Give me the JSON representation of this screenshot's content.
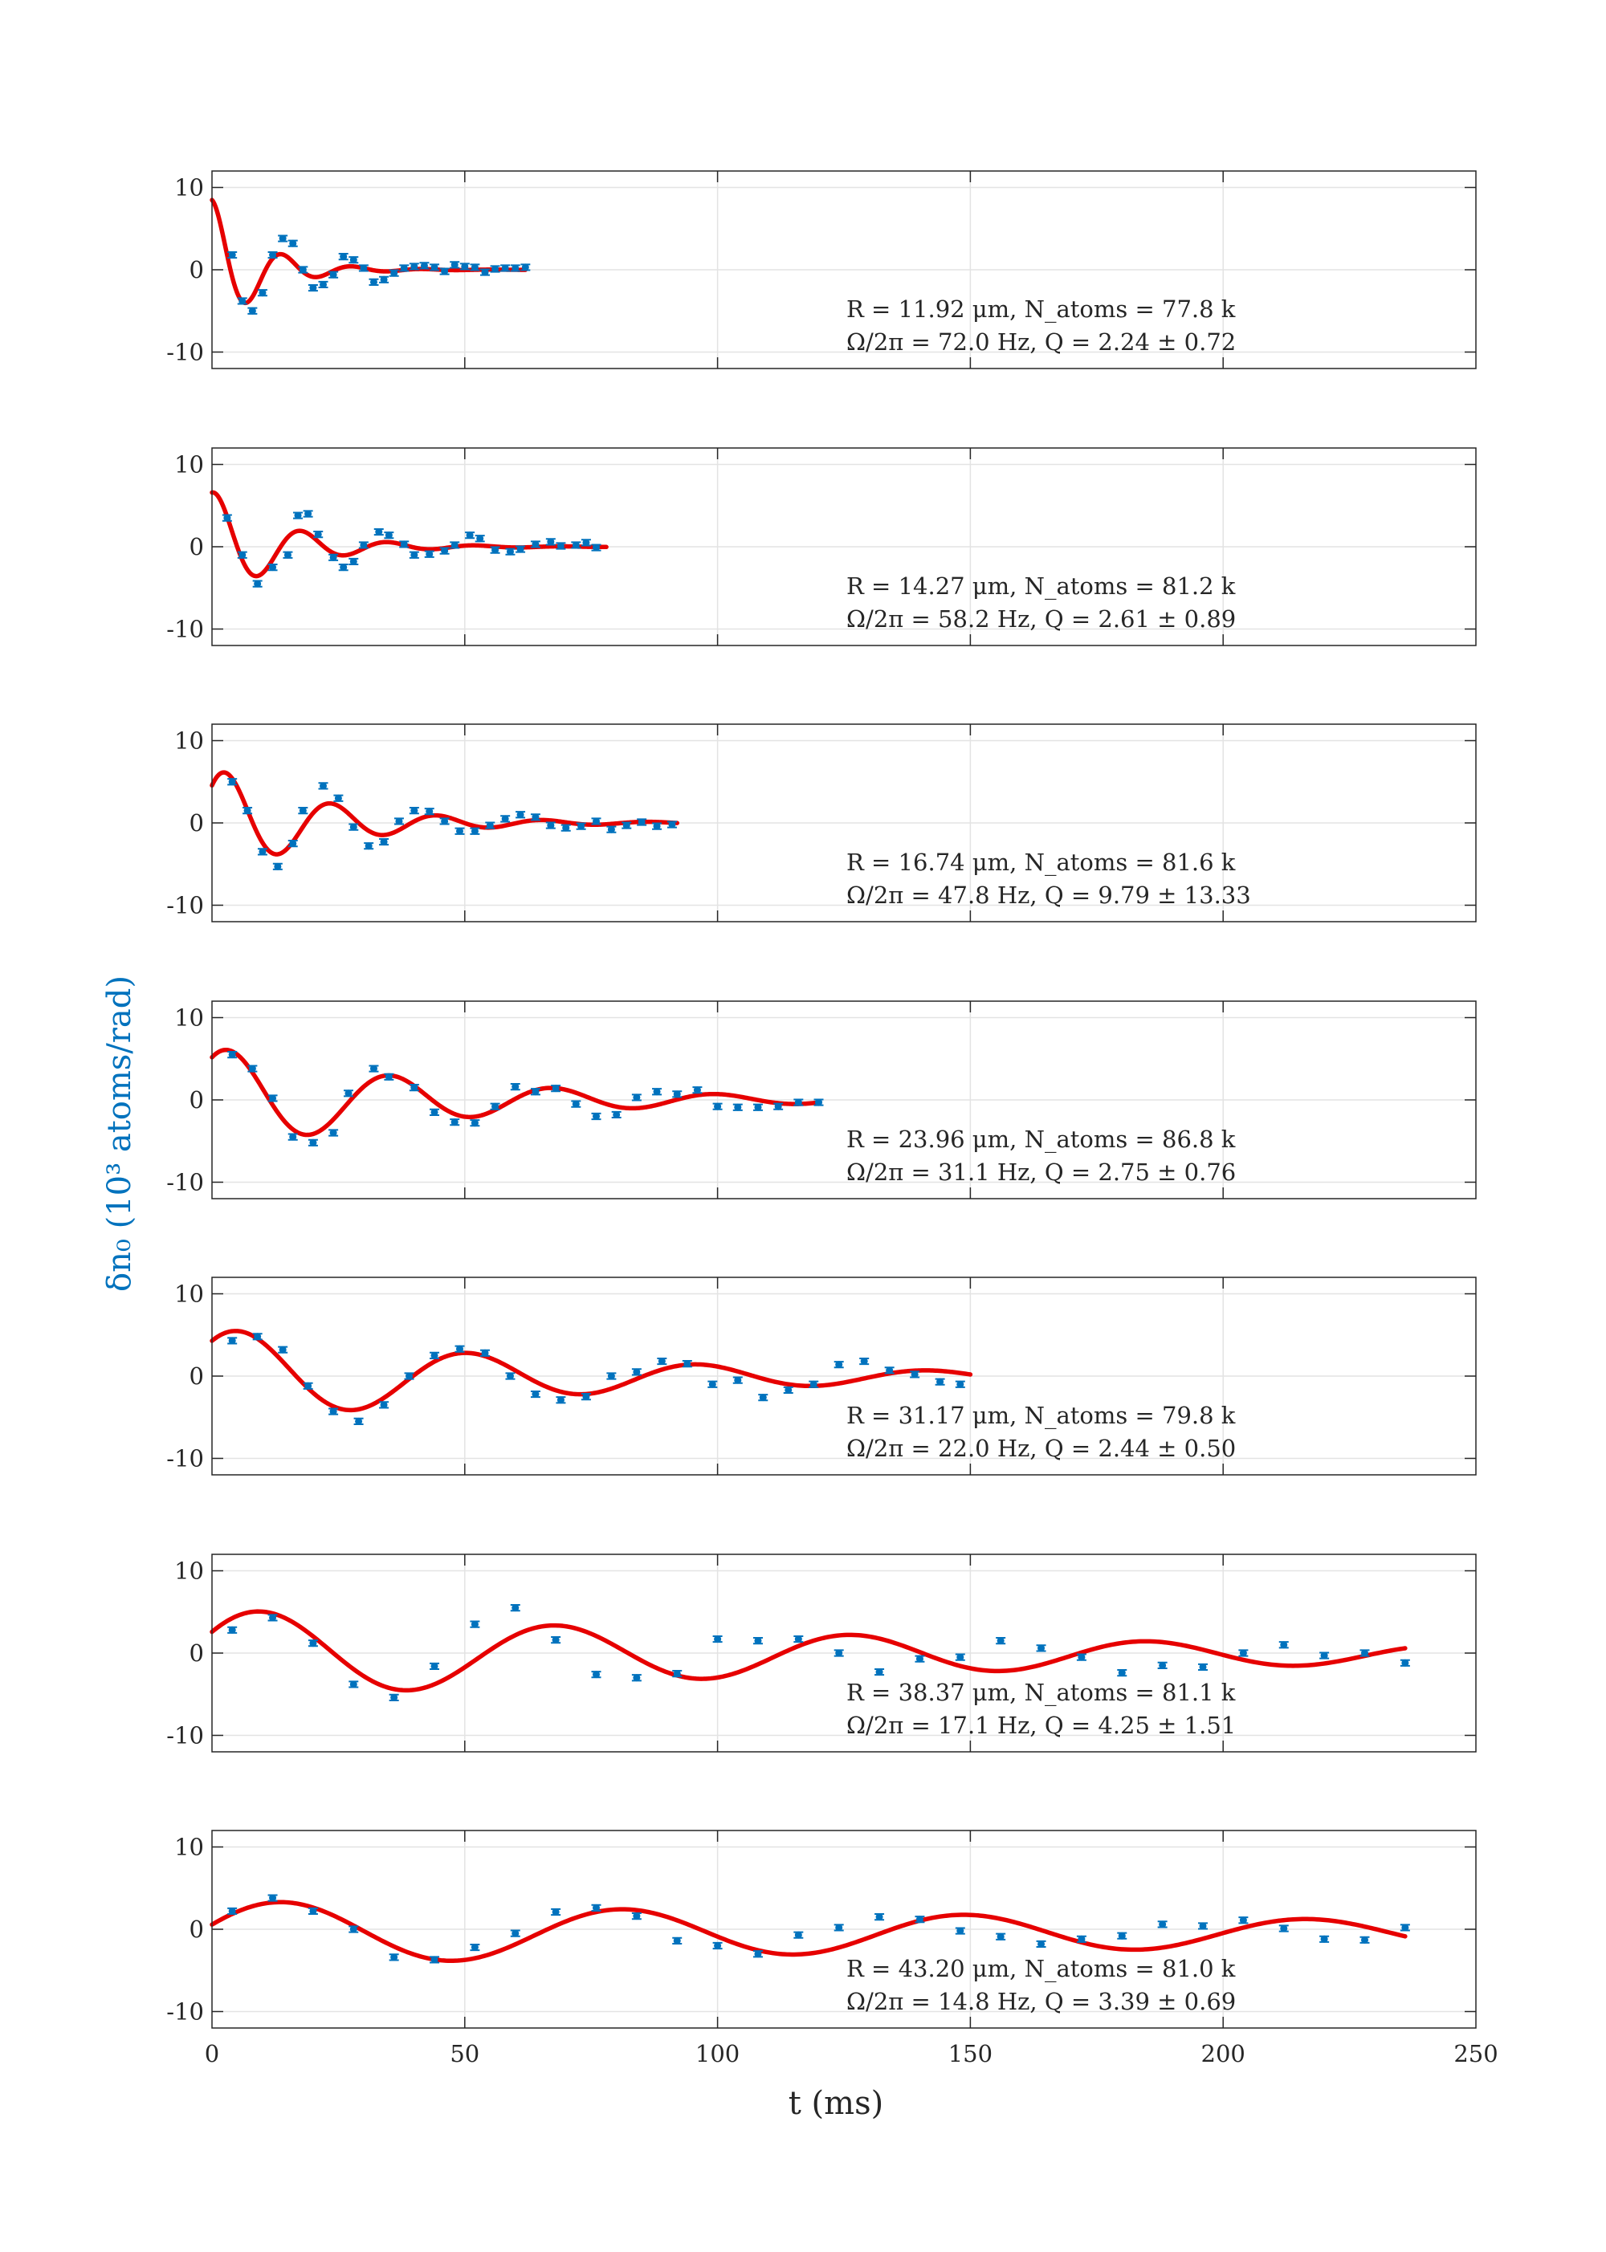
{
  "chart_data": {
    "type": "scatter",
    "xlabel": "t (ms)",
    "ylabel": "δn₀ (10³ atoms/rad)",
    "xlim": [
      0,
      250
    ],
    "xticks": [
      0,
      50,
      100,
      150,
      200,
      250
    ],
    "ylim": [
      -12,
      12
    ],
    "yticks": [
      10,
      0,
      -10
    ],
    "ytick_labels": [
      "10",
      "0",
      "-10"
    ],
    "grid": true,
    "colors": {
      "data": "#0072BD",
      "fit": "#E60000",
      "grid": "#e3e3e3",
      "axes": "#262626"
    },
    "panels": [
      {
        "annotation_line1": "R = 11.92 μm, N_atoms = 77.8 k",
        "annotation_line2": "Ω/2π = 72.0 Hz, Q = 2.24 ± 0.72",
        "fit": {
          "A": 8.5,
          "freq_hz": 72.0,
          "tau_ms": 9.2,
          "phase": -0.08,
          "offset": 0.0,
          "t_start": 0,
          "t_end": 62
        },
        "points": [
          [
            4,
            1.8
          ],
          [
            6,
            -3.8
          ],
          [
            8,
            -5.0
          ],
          [
            10,
            -2.8
          ],
          [
            12,
            1.8
          ],
          [
            14,
            3.8
          ],
          [
            16,
            3.2
          ],
          [
            18,
            0.0
          ],
          [
            20,
            -2.2
          ],
          [
            22,
            -1.8
          ],
          [
            24,
            -0.6
          ],
          [
            26,
            1.6
          ],
          [
            28,
            1.2
          ],
          [
            30,
            0.2
          ],
          [
            32,
            -1.5
          ],
          [
            34,
            -1.2
          ],
          [
            36,
            -0.4
          ],
          [
            38,
            0.2
          ],
          [
            40,
            0.4
          ],
          [
            42,
            0.5
          ],
          [
            44,
            0.3
          ],
          [
            46,
            -0.2
          ],
          [
            48,
            0.6
          ],
          [
            50,
            0.4
          ],
          [
            52,
            0.3
          ],
          [
            54,
            -0.3
          ],
          [
            56,
            0.1
          ],
          [
            58,
            0.2
          ],
          [
            60,
            0.2
          ],
          [
            62,
            0.3
          ]
        ]
      },
      {
        "annotation_line1": "R = 14.27 μm, N_atoms = 81.2 k",
        "annotation_line2": "Ω/2π = 58.2 Hz, Q = 2.61 ± 0.89",
        "fit": {
          "A": 6.8,
          "freq_hz": 58.2,
          "tau_ms": 14.0,
          "phase": -0.25,
          "offset": 0.0,
          "t_start": 0,
          "t_end": 78
        },
        "points": [
          [
            3,
            3.5
          ],
          [
            6,
            -1.0
          ],
          [
            9,
            -4.5
          ],
          [
            12,
            -2.5
          ],
          [
            15,
            -1.0
          ],
          [
            17,
            3.8
          ],
          [
            19,
            4.0
          ],
          [
            21,
            1.5
          ],
          [
            24,
            -1.3
          ],
          [
            26,
            -2.5
          ],
          [
            28,
            -1.8
          ],
          [
            30,
            0.2
          ],
          [
            33,
            1.8
          ],
          [
            35,
            1.4
          ],
          [
            38,
            0.3
          ],
          [
            40,
            -1.0
          ],
          [
            43,
            -0.9
          ],
          [
            46,
            -0.5
          ],
          [
            48,
            0.2
          ],
          [
            51,
            1.4
          ],
          [
            53,
            1.0
          ],
          [
            56,
            -0.4
          ],
          [
            59,
            -0.6
          ],
          [
            61,
            -0.3
          ],
          [
            64,
            0.3
          ],
          [
            67,
            0.6
          ],
          [
            69,
            0.1
          ],
          [
            72,
            0.2
          ],
          [
            74,
            0.5
          ],
          [
            76,
            -0.1
          ]
        ]
      },
      {
        "annotation_line1": "R = 16.74 μm, N_atoms = 81.6 k",
        "annotation_line2": "Ω/2π = 47.8 Hz, Q = 9.79 ± 13.33",
        "fit": {
          "A": 6.9,
          "freq_hz": 47.8,
          "tau_ms": 22.0,
          "phase": -0.85,
          "offset": 0.0,
          "t_start": 0,
          "t_end": 92
        },
        "points": [
          [
            4,
            5.0
          ],
          [
            7,
            1.5
          ],
          [
            10,
            -3.5
          ],
          [
            13,
            -5.3
          ],
          [
            16,
            -2.5
          ],
          [
            18,
            1.5
          ],
          [
            22,
            4.5
          ],
          [
            25,
            3.0
          ],
          [
            28,
            -0.5
          ],
          [
            31,
            -2.8
          ],
          [
            34,
            -2.3
          ],
          [
            37,
            0.2
          ],
          [
            40,
            1.5
          ],
          [
            43,
            1.4
          ],
          [
            46,
            0.2
          ],
          [
            49,
            -1.0
          ],
          [
            52,
            -1.0
          ],
          [
            55,
            -0.3
          ],
          [
            58,
            0.5
          ],
          [
            61,
            1.0
          ],
          [
            64,
            0.7
          ],
          [
            67,
            -0.3
          ],
          [
            70,
            -0.6
          ],
          [
            73,
            -0.4
          ],
          [
            76,
            0.2
          ],
          [
            79,
            -0.8
          ],
          [
            82,
            -0.3
          ],
          [
            85,
            0.1
          ],
          [
            88,
            -0.4
          ],
          [
            91,
            -0.2
          ]
        ]
      },
      {
        "annotation_line1": "R = 23.96 μm, N_atoms = 86.8 k",
        "annotation_line2": "Ω/2π = 31.1 Hz, Q = 2.75 ± 0.76",
        "fit": {
          "A": 6.5,
          "freq_hz": 31.1,
          "tau_ms": 45.0,
          "phase": -0.65,
          "offset": 0.0,
          "t_start": 0,
          "t_end": 120
        },
        "points": [
          [
            4,
            5.5
          ],
          [
            8,
            3.8
          ],
          [
            12,
            0.2
          ],
          [
            16,
            -4.5
          ],
          [
            20,
            -5.2
          ],
          [
            24,
            -4.0
          ],
          [
            27,
            0.8
          ],
          [
            32,
            3.8
          ],
          [
            35,
            2.8
          ],
          [
            40,
            1.5
          ],
          [
            44,
            -1.5
          ],
          [
            48,
            -2.7
          ],
          [
            52,
            -2.8
          ],
          [
            56,
            -0.8
          ],
          [
            60,
            1.6
          ],
          [
            64,
            1.0
          ],
          [
            68,
            1.4
          ],
          [
            72,
            -0.5
          ],
          [
            76,
            -2.0
          ],
          [
            80,
            -1.8
          ],
          [
            84,
            0.3
          ],
          [
            88,
            1.0
          ],
          [
            92,
            0.7
          ],
          [
            96,
            1.2
          ],
          [
            100,
            -0.8
          ],
          [
            104,
            -0.9
          ],
          [
            108,
            -0.9
          ],
          [
            112,
            -0.8
          ],
          [
            116,
            -0.3
          ],
          [
            120,
            -0.3
          ]
        ]
      },
      {
        "annotation_line1": "R = 31.17 μm, N_atoms = 79.8 k",
        "annotation_line2": "Ω/2π = 22.0 Hz, Q = 2.44 ± 0.50",
        "fit": {
          "A": 6.0,
          "freq_hz": 22.0,
          "tau_ms": 70.0,
          "phase": -0.75,
          "offset": -0.1,
          "t_start": 0,
          "t_end": 150
        },
        "points": [
          [
            4,
            4.3
          ],
          [
            9,
            4.8
          ],
          [
            14,
            3.2
          ],
          [
            19,
            -1.2
          ],
          [
            24,
            -4.3
          ],
          [
            29,
            -5.5
          ],
          [
            34,
            -3.5
          ],
          [
            39,
            0.0
          ],
          [
            44,
            2.5
          ],
          [
            49,
            3.3
          ],
          [
            54,
            2.8
          ],
          [
            59,
            0.0
          ],
          [
            64,
            -2.2
          ],
          [
            69,
            -2.9
          ],
          [
            74,
            -2.5
          ],
          [
            79,
            0.0
          ],
          [
            84,
            0.5
          ],
          [
            89,
            1.8
          ],
          [
            94,
            1.5
          ],
          [
            99,
            -1.0
          ],
          [
            104,
            -0.5
          ],
          [
            109,
            -2.6
          ],
          [
            114,
            -1.7
          ],
          [
            119,
            -1.0
          ],
          [
            124,
            1.4
          ],
          [
            129,
            1.8
          ],
          [
            134,
            0.7
          ],
          [
            139,
            0.2
          ],
          [
            144,
            -0.7
          ],
          [
            148,
            -1.0
          ]
        ]
      },
      {
        "annotation_line1": "R = 38.37 μm, N_atoms = 81.1 k",
        "annotation_line2": "Ω/2π = 17.1 Hz, Q = 4.25 ± 1.51",
        "fit": {
          "A": 5.6,
          "freq_hz": 17.1,
          "tau_ms": 150.0,
          "phase": -1.05,
          "offset": -0.2,
          "t_start": 0,
          "t_end": 236
        },
        "points": [
          [
            4,
            2.8
          ],
          [
            12,
            4.3
          ],
          [
            20,
            1.2
          ],
          [
            28,
            -3.8
          ],
          [
            36,
            -5.4
          ],
          [
            44,
            -1.6
          ],
          [
            52,
            3.5
          ],
          [
            60,
            5.5
          ],
          [
            68,
            1.6
          ],
          [
            76,
            -2.6
          ],
          [
            84,
            -3.0
          ],
          [
            92,
            -2.5
          ],
          [
            100,
            1.7
          ],
          [
            108,
            1.5
          ],
          [
            116,
            1.7
          ],
          [
            124,
            0.0
          ],
          [
            132,
            -2.3
          ],
          [
            140,
            -0.7
          ],
          [
            148,
            -0.5
          ],
          [
            156,
            1.5
          ],
          [
            164,
            0.6
          ],
          [
            172,
            -0.5
          ],
          [
            180,
            -2.4
          ],
          [
            188,
            -1.5
          ],
          [
            196,
            -1.7
          ],
          [
            204,
            0.0
          ],
          [
            212,
            1.0
          ],
          [
            220,
            -0.3
          ],
          [
            228,
            0.0
          ],
          [
            236,
            -1.2
          ]
        ]
      },
      {
        "annotation_line1": "R = 43.20 μm, N_atoms = 81.0 k",
        "annotation_line2": "Ω/2π = 14.8 Hz, Q = 3.39 ± 0.69",
        "fit": {
          "A": 4.0,
          "freq_hz": 14.8,
          "tau_ms": 260.0,
          "phase": -1.3,
          "offset": -0.5,
          "t_start": 0,
          "t_end": 236
        },
        "points": [
          [
            4,
            2.2
          ],
          [
            12,
            3.8
          ],
          [
            20,
            2.2
          ],
          [
            28,
            0.0
          ],
          [
            36,
            -3.4
          ],
          [
            44,
            -3.7
          ],
          [
            52,
            -2.2
          ],
          [
            60,
            -0.5
          ],
          [
            68,
            2.1
          ],
          [
            76,
            2.6
          ],
          [
            84,
            1.6
          ],
          [
            92,
            -1.4
          ],
          [
            100,
            -2.0
          ],
          [
            108,
            -3.0
          ],
          [
            116,
            -0.7
          ],
          [
            124,
            0.2
          ],
          [
            132,
            1.5
          ],
          [
            140,
            1.2
          ],
          [
            148,
            -0.2
          ],
          [
            156,
            -0.9
          ],
          [
            164,
            -1.8
          ],
          [
            172,
            -1.2
          ],
          [
            180,
            -0.8
          ],
          [
            188,
            0.6
          ],
          [
            196,
            0.4
          ],
          [
            204,
            1.1
          ],
          [
            212,
            0.1
          ],
          [
            220,
            -1.2
          ],
          [
            228,
            -1.3
          ],
          [
            236,
            0.2
          ]
        ]
      }
    ]
  }
}
